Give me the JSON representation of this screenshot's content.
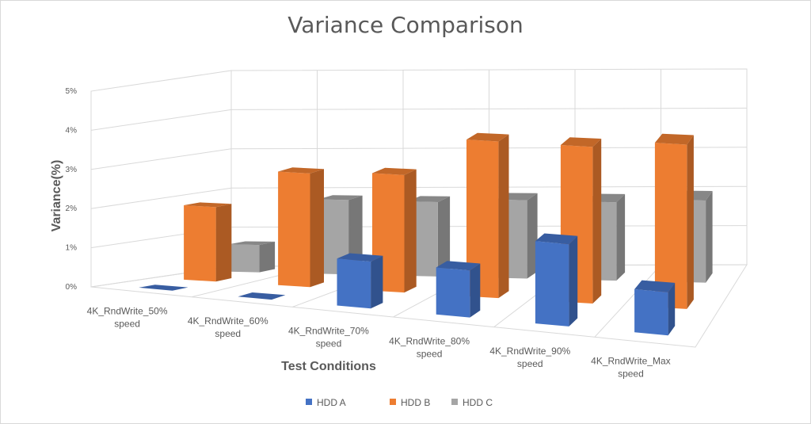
{
  "chart_data": {
    "type": "bar",
    "title": "Variance Comparison",
    "xlabel": "Test Conditions",
    "ylabel": "Variance(%)",
    "ylim": [
      0,
      5
    ],
    "yticks": [
      "0%",
      "1%",
      "2%",
      "3%",
      "4%",
      "5%"
    ],
    "categories": [
      [
        "4K_RndWrite_50%",
        "speed"
      ],
      [
        "4K_RndWrite_60%",
        "speed"
      ],
      [
        "4K_RndWrite_70%",
        "speed"
      ],
      [
        "4K_RndWrite_80%",
        "speed"
      ],
      [
        "4K_RndWrite_90%",
        "speed"
      ],
      [
        "4K_RndWrite_Max",
        "speed"
      ]
    ],
    "series": [
      {
        "name": "HDD A",
        "color": "#4472c4",
        "values": [
          0.0,
          0.0,
          1.2,
          1.2,
          2.1,
          1.1
        ]
      },
      {
        "name": "HDD B",
        "color": "#ed7d31",
        "values": [
          1.9,
          2.9,
          3.0,
          4.0,
          4.0,
          4.2
        ]
      },
      {
        "name": "HDD C",
        "color": "#a5a5a5",
        "values": [
          0.7,
          1.9,
          1.9,
          2.0,
          2.0,
          2.1
        ]
      }
    ],
    "grid": true,
    "legend_position": "bottom",
    "projection": "3d-column"
  }
}
